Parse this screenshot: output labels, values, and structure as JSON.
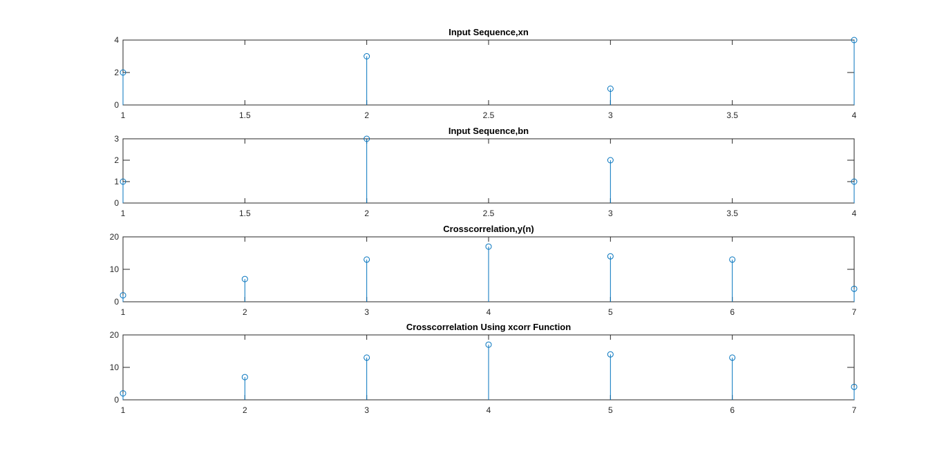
{
  "chart_data": [
    {
      "type": "stem",
      "title": "Input Sequence,xn",
      "x": [
        1,
        2,
        3,
        4
      ],
      "values": [
        2,
        3,
        1,
        4
      ],
      "xlim": [
        1,
        4
      ],
      "ylim": [
        0,
        4
      ],
      "xticks": [
        1,
        1.5,
        2,
        2.5,
        3,
        3.5,
        4
      ],
      "xtick_labels": [
        "1",
        "1.5",
        "2",
        "2.5",
        "3",
        "3.5",
        "4"
      ],
      "yticks": [
        0,
        2,
        4
      ],
      "ytick_labels": [
        "0",
        "2",
        "4"
      ]
    },
    {
      "type": "stem",
      "title": "Input Sequence,bn",
      "x": [
        1,
        2,
        3,
        4
      ],
      "values": [
        1,
        3,
        2,
        1
      ],
      "xlim": [
        1,
        4
      ],
      "ylim": [
        0,
        3
      ],
      "xticks": [
        1,
        1.5,
        2,
        2.5,
        3,
        3.5,
        4
      ],
      "xtick_labels": [
        "1",
        "1.5",
        "2",
        "2.5",
        "3",
        "3.5",
        "4"
      ],
      "yticks": [
        0,
        1,
        2,
        3
      ],
      "ytick_labels": [
        "0",
        "1",
        "2",
        "3"
      ]
    },
    {
      "type": "stem",
      "title": "Crosscorrelation,y(n)",
      "x": [
        1,
        2,
        3,
        4,
        5,
        6,
        7
      ],
      "values": [
        2,
        7,
        13,
        17,
        14,
        13,
        4
      ],
      "xlim": [
        1,
        7
      ],
      "ylim": [
        0,
        20
      ],
      "xticks": [
        1,
        2,
        3,
        4,
        5,
        6,
        7
      ],
      "xtick_labels": [
        "1",
        "2",
        "3",
        "4",
        "5",
        "6",
        "7"
      ],
      "yticks": [
        0,
        10,
        20
      ],
      "ytick_labels": [
        "0",
        "10",
        "20"
      ]
    },
    {
      "type": "stem",
      "title": "Crosscorrelation Using xcorr Function",
      "x": [
        1,
        2,
        3,
        4,
        5,
        6,
        7
      ],
      "values": [
        2,
        7,
        13,
        17,
        14,
        13,
        4
      ],
      "xlim": [
        1,
        7
      ],
      "ylim": [
        0,
        20
      ],
      "xticks": [
        1,
        2,
        3,
        4,
        5,
        6,
        7
      ],
      "xtick_labels": [
        "1",
        "2",
        "3",
        "4",
        "5",
        "6",
        "7"
      ],
      "yticks": [
        0,
        10,
        20
      ],
      "ytick_labels": [
        "0",
        "10",
        "20"
      ]
    }
  ],
  "colors": {
    "stem": "#0072BD",
    "axis": "#262626"
  }
}
